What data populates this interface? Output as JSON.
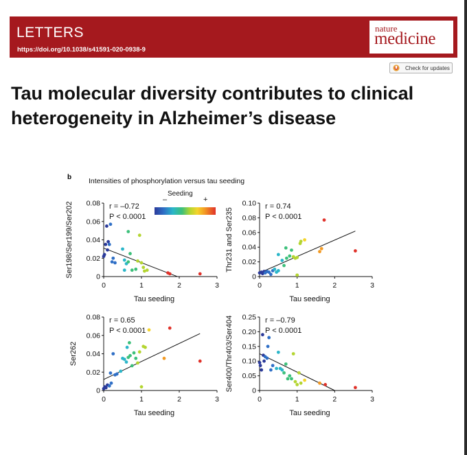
{
  "header": {
    "section": "LETTERS",
    "doi": "https://doi.org/10.1038/s41591-020-0938-9",
    "logo_top": "nature",
    "logo_main": "medicine",
    "update_button": "Check for updates",
    "brand_color": "#a5191e"
  },
  "article": {
    "title_line1": "Tau molecular diversity contributes to clinical",
    "title_line2": "heterogeneity in Alzheimer’s disease"
  },
  "figure": {
    "label": "b",
    "caption": "Intensities of phosphorylation versus tau seeding",
    "legend_title": "Seeding",
    "legend_minus": "–",
    "legend_plus": "+",
    "colormap": [
      "#2b3a9a",
      "#2f6fc6",
      "#2bb6c9",
      "#3cc07a",
      "#b4d531",
      "#f4d42c",
      "#f39a23",
      "#e0322a"
    ]
  },
  "chart_data": [
    {
      "type": "scatter",
      "xlabel": "Tau seeding",
      "ylabel": "Ser198/Ser199/Ser202",
      "stat_r": "r = –0.72",
      "stat_p": "P < 0.0001",
      "xlim": [
        0,
        3
      ],
      "ylim": [
        0,
        0.08
      ],
      "xticks": [
        0,
        1,
        2,
        3
      ],
      "yticks": [
        0,
        0.02,
        0.04,
        0.06,
        0.08
      ],
      "ytick_labels": [
        "0",
        "0.02",
        "0.04",
        "0.06",
        "0.08"
      ],
      "fit": [
        [
          0,
          0.031
        ],
        [
          1.95,
          0
        ]
      ],
      "points": [
        [
          0.0,
          0.022
        ],
        [
          0.02,
          0.024
        ],
        [
          0.05,
          0.035
        ],
        [
          0.1,
          0.029
        ],
        [
          0.12,
          0.038
        ],
        [
          0.15,
          0.035
        ],
        [
          0.08,
          0.055
        ],
        [
          0.18,
          0.057
        ],
        [
          0.25,
          0.02
        ],
        [
          0.3,
          0.015
        ],
        [
          0.22,
          0.016
        ],
        [
          0.5,
          0.03
        ],
        [
          0.55,
          0.018
        ],
        [
          0.6,
          0.014
        ],
        [
          0.65,
          0.016
        ],
        [
          0.7,
          0.025
        ],
        [
          0.65,
          0.049
        ],
        [
          0.75,
          0.007
        ],
        [
          0.85,
          0.008
        ],
        [
          0.9,
          0.017
        ],
        [
          0.95,
          0.045
        ],
        [
          1.0,
          0.015
        ],
        [
          1.05,
          0.01
        ],
        [
          1.08,
          0.006
        ],
        [
          1.15,
          0.007
        ],
        [
          0.55,
          0.007
        ],
        [
          1.7,
          0.004
        ],
        [
          1.75,
          0.003
        ],
        [
          2.55,
          0.003
        ]
      ]
    },
    {
      "type": "scatter",
      "xlabel": "Tau seeding",
      "ylabel": "Thr231 and Ser235",
      "stat_r": "r = 0.74",
      "stat_p": "P < 0.0001",
      "xlim": [
        0,
        3
      ],
      "ylim": [
        0,
        0.1
      ],
      "xticks": [
        0,
        1,
        2,
        3
      ],
      "yticks": [
        0,
        0.02,
        0.04,
        0.06,
        0.08,
        0.1
      ],
      "ytick_labels": [
        "0",
        "0.02",
        "0.04",
        "0.06",
        "0.08",
        "0.10"
      ],
      "fit": [
        [
          0,
          0.005
        ],
        [
          2.55,
          0.062
        ]
      ],
      "points": [
        [
          0.0,
          0.005
        ],
        [
          0.05,
          0.006
        ],
        [
          0.08,
          0.004
        ],
        [
          0.12,
          0.007
        ],
        [
          0.15,
          0.005
        ],
        [
          0.2,
          0.007
        ],
        [
          0.25,
          0.006
        ],
        [
          0.3,
          0.003
        ],
        [
          0.35,
          0.008
        ],
        [
          0.4,
          0.01
        ],
        [
          0.45,
          0.006
        ],
        [
          0.5,
          0.008
        ],
        [
          0.5,
          0.03
        ],
        [
          0.6,
          0.022
        ],
        [
          0.65,
          0.015
        ],
        [
          0.7,
          0.039
        ],
        [
          0.72,
          0.025
        ],
        [
          0.8,
          0.028
        ],
        [
          0.85,
          0.036
        ],
        [
          0.9,
          0.027
        ],
        [
          0.95,
          0.025
        ],
        [
          1.0,
          0.002
        ],
        [
          1.0,
          0.026
        ],
        [
          1.08,
          0.045
        ],
        [
          1.1,
          0.048
        ],
        [
          1.2,
          0.05
        ],
        [
          1.6,
          0.034
        ],
        [
          1.65,
          0.038
        ],
        [
          1.72,
          0.077
        ],
        [
          2.55,
          0.035
        ]
      ]
    },
    {
      "type": "scatter",
      "xlabel": "Tau seeding",
      "ylabel": "Ser262",
      "stat_r": "r = 0.65",
      "stat_p": "P < 0.0001",
      "xlim": [
        0,
        3
      ],
      "ylim": [
        0,
        0.08
      ],
      "xticks": [
        0,
        1,
        2,
        3
      ],
      "yticks": [
        0,
        0.02,
        0.04,
        0.06,
        0.08
      ],
      "ytick_labels": [
        "0",
        "0.02",
        "0.04",
        "0.06",
        "0.08"
      ],
      "fit": [
        [
          0,
          0.012
        ],
        [
          2.55,
          0.062
        ]
      ],
      "points": [
        [
          0.0,
          0.002
        ],
        [
          0.03,
          0.004
        ],
        [
          0.06,
          0.003
        ],
        [
          0.1,
          0.006
        ],
        [
          0.15,
          0.005
        ],
        [
          0.2,
          0.008
        ],
        [
          0.18,
          0.019
        ],
        [
          0.25,
          0.04
        ],
        [
          0.3,
          0.017
        ],
        [
          0.35,
          0.018
        ],
        [
          0.45,
          0.021
        ],
        [
          0.5,
          0.035
        ],
        [
          0.55,
          0.034
        ],
        [
          0.6,
          0.031
        ],
        [
          0.62,
          0.047
        ],
        [
          0.65,
          0.036
        ],
        [
          0.68,
          0.052
        ],
        [
          0.7,
          0.038
        ],
        [
          0.75,
          0.027
        ],
        [
          0.8,
          0.041
        ],
        [
          0.85,
          0.035
        ],
        [
          0.9,
          0.03
        ],
        [
          0.95,
          0.042
        ],
        [
          1.0,
          0.004
        ],
        [
          1.05,
          0.048
        ],
        [
          1.1,
          0.047
        ],
        [
          1.2,
          0.066
        ],
        [
          1.6,
          0.035
        ],
        [
          1.75,
          0.068
        ],
        [
          2.55,
          0.032
        ]
      ]
    },
    {
      "type": "scatter",
      "xlabel": "Tau seeding",
      "ylabel": "Ser400/Thr403/Ser404",
      "stat_r": "r = –0.79",
      "stat_p": "P < 0.0001",
      "xlim": [
        0,
        3
      ],
      "ylim": [
        0,
        0.25
      ],
      "xticks": [
        0,
        1,
        2,
        3
      ],
      "yticks": [
        0,
        0.05,
        0.1,
        0.15,
        0.2,
        0.25
      ],
      "ytick_labels": [
        "0",
        "0.05",
        "0.10",
        "0.15",
        "0.20",
        "0.25"
      ],
      "fit": [
        [
          0,
          0.125
        ],
        [
          2.0,
          0
        ]
      ],
      "points": [
        [
          0.0,
          0.095
        ],
        [
          0.02,
          0.085
        ],
        [
          0.05,
          0.07
        ],
        [
          0.08,
          0.19
        ],
        [
          0.1,
          0.12
        ],
        [
          0.12,
          0.1
        ],
        [
          0.15,
          0.115
        ],
        [
          0.2,
          0.11
        ],
        [
          0.22,
          0.15
        ],
        [
          0.25,
          0.18
        ],
        [
          0.3,
          0.07
        ],
        [
          0.35,
          0.085
        ],
        [
          0.45,
          0.075
        ],
        [
          0.5,
          0.13
        ],
        [
          0.55,
          0.075
        ],
        [
          0.6,
          0.07
        ],
        [
          0.65,
          0.06
        ],
        [
          0.7,
          0.09
        ],
        [
          0.75,
          0.04
        ],
        [
          0.8,
          0.05
        ],
        [
          0.85,
          0.04
        ],
        [
          0.9,
          0.125
        ],
        [
          0.95,
          0.03
        ],
        [
          1.0,
          0.02
        ],
        [
          1.05,
          0.06
        ],
        [
          1.1,
          0.025
        ],
        [
          1.2,
          0.035
        ],
        [
          1.6,
          0.025
        ],
        [
          1.75,
          0.02
        ],
        [
          2.55,
          0.01
        ]
      ]
    }
  ]
}
